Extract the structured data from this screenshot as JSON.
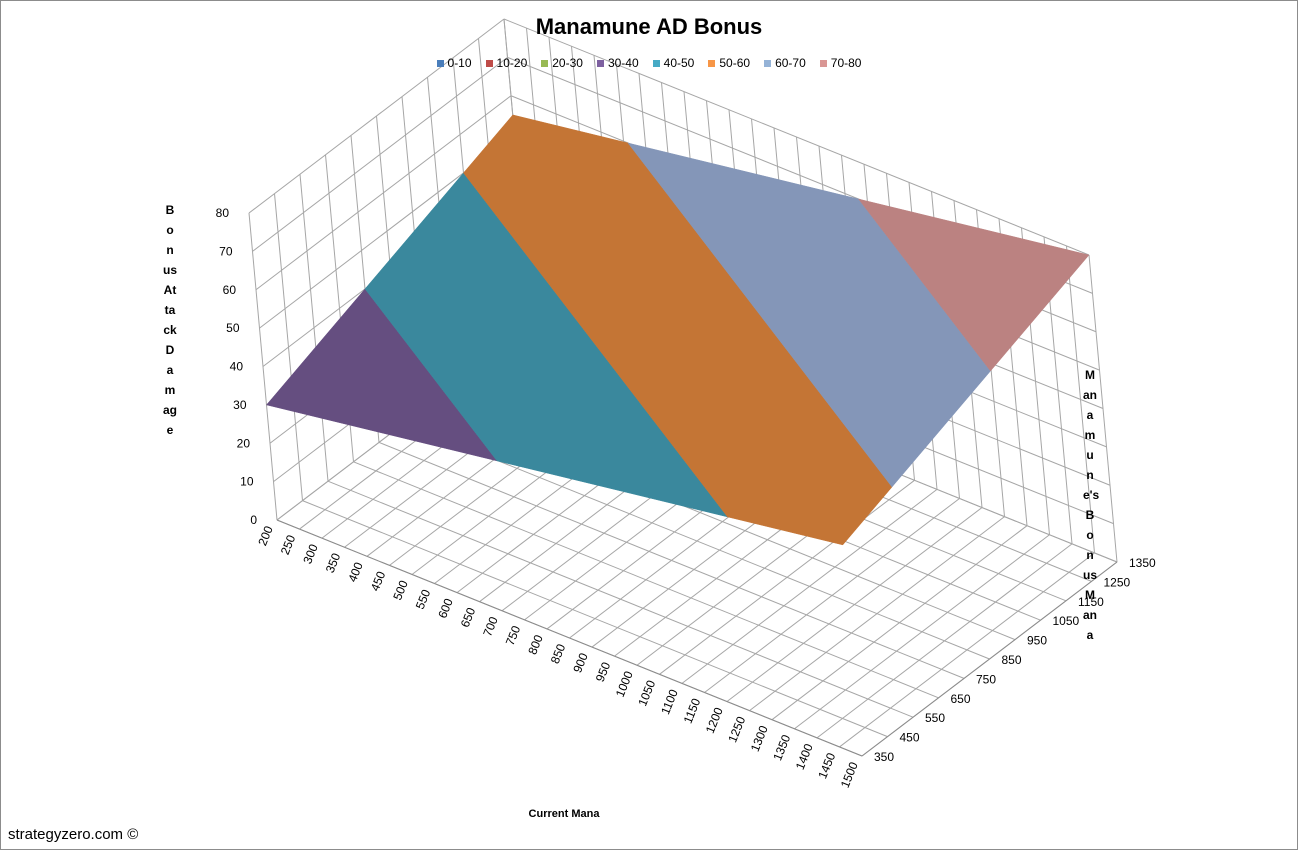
{
  "watermark": "strategyzero.com ©",
  "chart_data": {
    "type": "surface",
    "title": "Manamune AD Bonus",
    "xlabel": "Current Mana",
    "ylabel": "Manamune's Bonus Mana",
    "zlabel": "Bonus Attack Damage",
    "x_ticks": [
      "200",
      "250",
      "300",
      "350",
      "400",
      "450",
      "500",
      "550",
      "600",
      "650",
      "700",
      "750",
      "800",
      "850",
      "900",
      "950",
      "1000",
      "1050",
      "1100",
      "1150",
      "1200",
      "1250",
      "1300",
      "1350",
      "1400",
      "1450",
      "1500"
    ],
    "y_ticks": [
      "350",
      "450",
      "550",
      "650",
      "750",
      "850",
      "950",
      "1050",
      "1150",
      "1250",
      "1350"
    ],
    "z_ticks": [
      "0",
      "10",
      "20",
      "30",
      "40",
      "50",
      "60",
      "70",
      "80"
    ],
    "zlim": [
      0,
      80
    ],
    "grid": true,
    "legend_position": "top",
    "legend": [
      {
        "name": "0-10",
        "color": "#4a7ebb"
      },
      {
        "name": "10-20",
        "color": "#be4b48"
      },
      {
        "name": "20-30",
        "color": "#98b954"
      },
      {
        "name": "30-40",
        "color": "#7d60a0"
      },
      {
        "name": "40-50",
        "color": "#46aac5"
      },
      {
        "name": "50-60",
        "color": "#f79646"
      },
      {
        "name": "60-70",
        "color": "#95b3d7"
      },
      {
        "name": "70-80",
        "color": "#d99694"
      }
    ],
    "surface_corners": {
      "x_range": [
        200,
        1500
      ],
      "y_range": [
        350,
        1350
      ],
      "z_at_x200_y350": 30,
      "z_at_x1500_y350": 55,
      "z_at_x200_y1350": 55,
      "z_at_x1500_y1350": 80
    },
    "bands": [
      {
        "name": "30-40",
        "color": "#654e80"
      },
      {
        "name": "40-50",
        "color": "#3a889d"
      },
      {
        "name": "50-60",
        "color": "#c47535"
      },
      {
        "name": "60-70",
        "color": "#8496b8"
      },
      {
        "name": "70-80",
        "color": "#bb8281"
      }
    ]
  }
}
